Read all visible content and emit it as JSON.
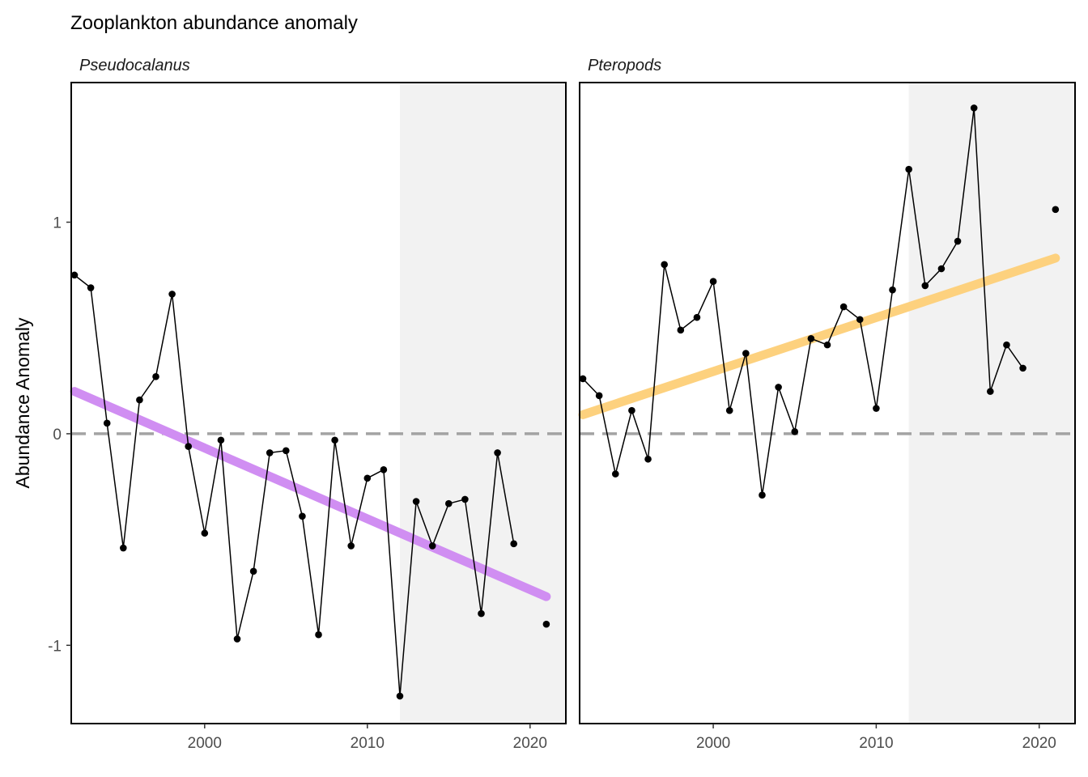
{
  "chart_data": {
    "type": "line",
    "title": "Zooplankton abundance anomaly",
    "ylabel": "Abundance Anomaly",
    "xlabel": "",
    "xlim": [
      1991.8,
      2022.2
    ],
    "ylim": [
      -1.37,
      1.66
    ],
    "x_ticks": [
      2000,
      2010,
      2020
    ],
    "y_ticks": [
      -1,
      0,
      1
    ],
    "x_tick_labels": [
      "2000",
      "2010",
      "2020"
    ],
    "y_tick_labels": [
      "-1",
      "0",
      "1"
    ],
    "reference_line": 0,
    "grid": false,
    "shaded_region": {
      "x_start": 2012,
      "x_end": 2022.2,
      "color": "#f2f2f2"
    },
    "panels": [
      {
        "name": "Pseudocalanus",
        "trend_color": "#d08ef2",
        "trend": {
          "x": [
            1992,
            2021
          ],
          "y": [
            0.2,
            -0.77
          ]
        },
        "points": {
          "x": [
            1992,
            1993,
            1994,
            1995,
            1996,
            1997,
            1998,
            1999,
            2000,
            2001,
            2002,
            2003,
            2004,
            2005,
            2006,
            2007,
            2008,
            2009,
            2010,
            2011,
            2012,
            2013,
            2014,
            2015,
            2016,
            2017,
            2018,
            2019,
            2021
          ],
          "y": [
            0.75,
            0.69,
            0.05,
            -0.54,
            0.16,
            0.27,
            0.66,
            -0.06,
            -0.47,
            -0.03,
            -0.97,
            -0.65,
            -0.09,
            -0.08,
            -0.39,
            -0.95,
            -0.03,
            -0.53,
            -0.21,
            -0.17,
            -1.24,
            -0.32,
            -0.53,
            -0.33,
            -0.31,
            -0.85,
            -0.09,
            -0.52,
            -0.9
          ]
        },
        "line_segments": [
          [
            1992,
            2019
          ]
        ]
      },
      {
        "name": "Pteropods",
        "trend_color": "#fdd17e",
        "trend": {
          "x": [
            1992,
            2021
          ],
          "y": [
            0.09,
            0.83
          ]
        },
        "points": {
          "x": [
            1992,
            1993,
            1994,
            1995,
            1996,
            1997,
            1998,
            1999,
            2000,
            2001,
            2002,
            2003,
            2004,
            2005,
            2006,
            2007,
            2008,
            2009,
            2010,
            2011,
            2012,
            2013,
            2014,
            2015,
            2016,
            2017,
            2018,
            2019,
            2021
          ],
          "y": [
            0.26,
            0.18,
            -0.19,
            0.11,
            -0.12,
            0.8,
            0.49,
            0.55,
            0.72,
            0.11,
            0.38,
            -0.29,
            0.22,
            0.01,
            0.45,
            0.42,
            0.6,
            0.54,
            0.12,
            0.68,
            1.25,
            0.7,
            0.78,
            0.91,
            1.54,
            0.2,
            0.42,
            0.31,
            1.06
          ]
        },
        "line_segments": [
          [
            1992,
            2019
          ]
        ]
      }
    ]
  }
}
